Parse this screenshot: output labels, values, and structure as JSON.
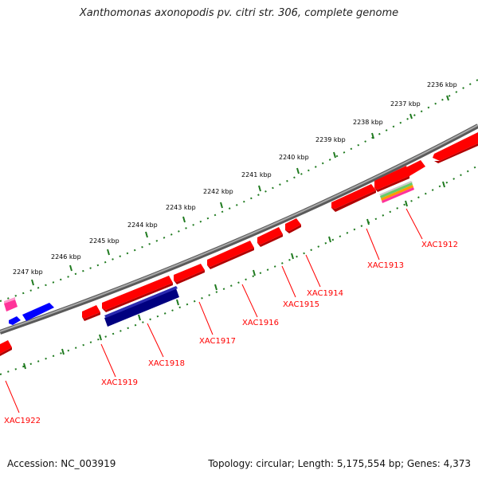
{
  "title": "Xanthomonas axonopodis pv. citri str. 306, complete genome",
  "footer": {
    "accession": "Accession: NC_003919",
    "summary": "Topology: circular; Length: 5,175,554 bp; Genes: 4,373"
  },
  "colors": {
    "forward_gene": "#ff0000",
    "reverse_highlight": "#000080",
    "small_blue": "#0000ff",
    "pink": "#ff3399",
    "backbone": "#808080",
    "tick": "#006400",
    "label": "#ff0000"
  },
  "kbp_ticks": [
    "2236 kbp",
    "2237 kbp",
    "2238 kbp",
    "2239 kbp",
    "2240 kbp",
    "2241 kbp",
    "2242 kbp",
    "2243 kbp",
    "2244 kbp",
    "2245 kbp",
    "2246 kbp",
    "2247 kbp"
  ],
  "gene_labels": [
    "XAC1912",
    "XAC1913",
    "XAC1914",
    "XAC1915",
    "XAC1916",
    "XAC1917",
    "XAC1918",
    "XAC1919",
    "XAC1922"
  ]
}
